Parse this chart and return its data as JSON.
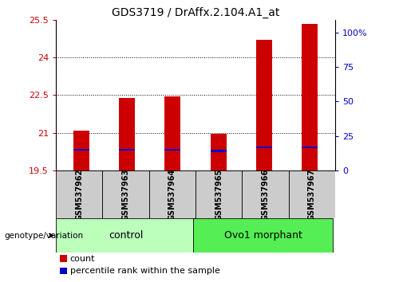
{
  "title": "GDS3719 / DrAffx.2.104.A1_at",
  "samples": [
    "GSM537962",
    "GSM537963",
    "GSM537964",
    "GSM537965",
    "GSM537966",
    "GSM537967"
  ],
  "bar_tops": [
    21.1,
    22.4,
    22.45,
    20.95,
    24.7,
    25.35
  ],
  "bar_bottom": 19.5,
  "blue_marks": [
    20.33,
    20.33,
    20.33,
    20.28,
    20.42,
    20.42
  ],
  "ylim": [
    19.5,
    25.5
  ],
  "yticks_left": [
    19.5,
    21.0,
    22.5,
    24.0,
    25.5
  ],
  "yticks_left_labels": [
    "19.5",
    "21",
    "22.5",
    "24",
    "25.5"
  ],
  "yticks_right_positions": [
    19.5,
    20.875,
    22.25,
    23.625,
    25.0
  ],
  "yticks_right_labels": [
    "0",
    "25",
    "50",
    "75",
    "100%"
  ],
  "grid_lines": [
    21.0,
    22.5,
    24.0
  ],
  "bar_color": "#cc0000",
  "blue_color": "#0000cc",
  "bar_width": 0.35,
  "control_color": "#bbffbb",
  "morphant_color": "#55ee55",
  "legend_count": "count",
  "legend_pct": "percentile rank within the sample",
  "red_color": "#cc0000",
  "blue_axis_color": "#0000cc"
}
